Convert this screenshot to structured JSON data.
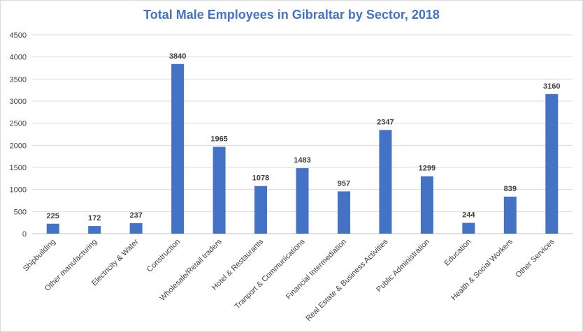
{
  "chart_data": {
    "type": "bar",
    "title": "Total Male Employees in Gibraltar by Sector, 2018",
    "xlabel": "",
    "ylabel": "",
    "ylim": [
      0,
      4500
    ],
    "yticks": [
      0,
      500,
      1000,
      1500,
      2000,
      2500,
      3000,
      3500,
      4000,
      4500
    ],
    "grid": true,
    "legend": "none",
    "bar_color": "#4472c4",
    "categories": [
      "Shipbuilding",
      "Other manufacturing",
      "Electricity & Water",
      "Construction",
      "Wholesale/Retail traders",
      "Hotel & Restaurants",
      "Tranport & Communications",
      "Financial Intermediation",
      "Real Estate & Business Activities",
      "Public Administration",
      "Education",
      "Health & Social Workers",
      "Other Services"
    ],
    "values": [
      225,
      172,
      237,
      3840,
      1965,
      1078,
      1483,
      957,
      2347,
      1299,
      244,
      839,
      3160
    ]
  }
}
